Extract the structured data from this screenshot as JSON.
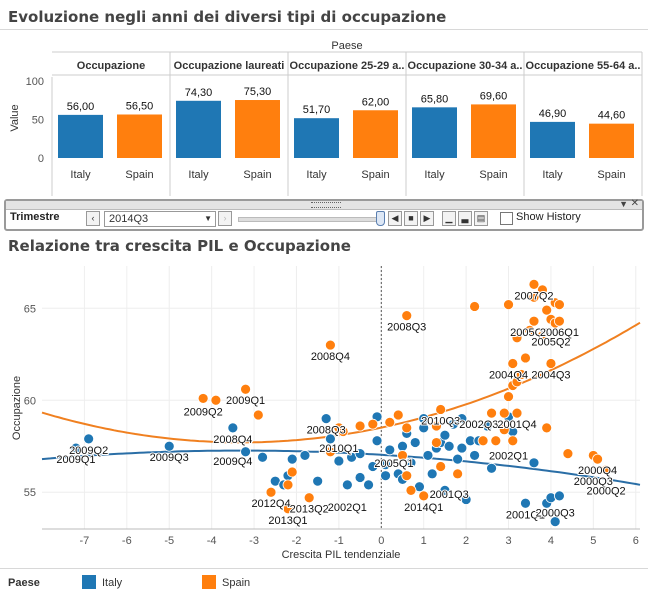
{
  "top_title": "Evoluzione negli anni dei diversi tipi di occupazione",
  "bottom_title": "Relazione tra crescita PIL e Occupazione",
  "colors": {
    "italy": "#1f77b4",
    "spain": "#ff7f0e",
    "trend_italy": "#2a6ea6",
    "trend_spain": "#f08020"
  },
  "toolbar": {
    "label": "Trimestre",
    "selected": "2014Q3",
    "show_history_label": "Show History",
    "show_history_checked": false
  },
  "legend": {
    "title": "Paese",
    "items": [
      {
        "label": "Italy",
        "color": "#1f77b4"
      },
      {
        "label": "Spain",
        "color": "#ff7f0e"
      }
    ]
  },
  "chart_data": [
    {
      "type": "bar",
      "header": "Paese",
      "ylabel": "Value",
      "ylim": [
        0,
        100
      ],
      "yticks": [
        0,
        50,
        100
      ],
      "panels": [
        {
          "title": "Occupazione",
          "categories": [
            "Italy",
            "Spain"
          ],
          "values": [
            56.0,
            56.5
          ],
          "labels": [
            "56,00",
            "56,50"
          ]
        },
        {
          "title": "Occupazione laureati",
          "categories": [
            "Italy",
            "Spain"
          ],
          "values": [
            74.3,
            75.3
          ],
          "labels": [
            "74,30",
            "75,30"
          ]
        },
        {
          "title": "Occupazione 25-29 a..",
          "categories": [
            "Italy",
            "Spain"
          ],
          "values": [
            51.7,
            62.0
          ],
          "labels": [
            "51,70",
            "62,00"
          ]
        },
        {
          "title": "Occupazione 30-34 a..",
          "categories": [
            "Italy",
            "Spain"
          ],
          "values": [
            65.8,
            69.6
          ],
          "labels": [
            "65,80",
            "69,60"
          ]
        },
        {
          "title": "Occupazione 55-64 a..",
          "categories": [
            "Italy",
            "Spain"
          ],
          "values": [
            46.9,
            44.6
          ],
          "labels": [
            "46,90",
            "44,60"
          ]
        }
      ]
    },
    {
      "type": "scatter",
      "xlabel": "Crescita PIL tendenziale",
      "ylabel": "Occupazione",
      "xlim": [
        -8,
        6.1
      ],
      "ylim": [
        53,
        67.3
      ],
      "xticks": [
        -7,
        -6,
        -5,
        -4,
        -3,
        -2,
        -1,
        0,
        1,
        2,
        3,
        4,
        5,
        6
      ],
      "yticks": [
        55,
        60,
        65
      ],
      "grid": true,
      "reference_line_x": 0,
      "series": [
        {
          "name": "Italy",
          "points": [
            [
              -7.2,
              57.4
            ],
            [
              -6.9,
              57.9
            ],
            [
              -5.0,
              57.5
            ],
            [
              -3.5,
              58.5
            ],
            [
              -3.2,
              57.2
            ],
            [
              -2.8,
              56.9
            ],
            [
              -2.5,
              55.6
            ],
            [
              -2.3,
              55.4
            ],
            [
              -2.2,
              55.9
            ],
            [
              -2.1,
              56.8
            ],
            [
              -1.8,
              57.0
            ],
            [
              -1.5,
              55.6
            ],
            [
              -1.3,
              59.0
            ],
            [
              -1.2,
              57.9
            ],
            [
              -1.0,
              56.7
            ],
            [
              -0.8,
              55.4
            ],
            [
              -0.7,
              56.9
            ],
            [
              -0.5,
              57.1
            ],
            [
              -0.5,
              55.8
            ],
            [
              -0.3,
              55.4
            ],
            [
              -0.2,
              56.4
            ],
            [
              -0.1,
              57.8
            ],
            [
              -0.1,
              59.1
            ],
            [
              0.1,
              56.5
            ],
            [
              0.1,
              55.9
            ],
            [
              0.2,
              57.3
            ],
            [
              0.4,
              56.0
            ],
            [
              0.5,
              55.7
            ],
            [
              0.5,
              57.5
            ],
            [
              0.6,
              58.2
            ],
            [
              0.7,
              56.6
            ],
            [
              0.8,
              57.7
            ],
            [
              0.9,
              55.3
            ],
            [
              1.0,
              58.5
            ],
            [
              1.0,
              59.0
            ],
            [
              1.1,
              57.0
            ],
            [
              1.2,
              56.0
            ],
            [
              1.3,
              57.4
            ],
            [
              1.4,
              57.7
            ],
            [
              1.5,
              58.1
            ],
            [
              1.5,
              55.1
            ],
            [
              1.6,
              57.5
            ],
            [
              1.7,
              58.7
            ],
            [
              1.8,
              56.8
            ],
            [
              1.9,
              57.4
            ],
            [
              1.9,
              59.0
            ],
            [
              2.0,
              54.6
            ],
            [
              2.1,
              57.8
            ],
            [
              2.2,
              57.0
            ],
            [
              2.3,
              57.8
            ],
            [
              2.5,
              58.6
            ],
            [
              2.6,
              56.3
            ],
            [
              3.0,
              59.1
            ],
            [
              3.1,
              58.3
            ],
            [
              3.4,
              54.4
            ],
            [
              3.6,
              56.6
            ],
            [
              3.9,
              54.4
            ],
            [
              4.0,
              54.7
            ],
            [
              4.1,
              53.4
            ],
            [
              4.2,
              54.8
            ]
          ],
          "point_labels": [
            {
              "label": "2009Q1",
              "x": -7.2,
              "y": 57.4
            },
            {
              "label": "2009Q2",
              "x": -6.9,
              "y": 57.9
            },
            {
              "label": "2009Q3",
              "x": -5.0,
              "y": 57.5
            },
            {
              "label": "2009Q4",
              "x": -3.5,
              "y": 57.3
            },
            {
              "label": "2008Q4",
              "x": -3.5,
              "y": 58.5
            },
            {
              "label": "2008Q3",
              "x": -1.3,
              "y": 59.0
            },
            {
              "label": "2010Q1",
              "x": -1.0,
              "y": 58.0
            },
            {
              "label": "2005Q1",
              "x": 0.3,
              "y": 57.2
            },
            {
              "label": "2010Q3",
              "x": 1.4,
              "y": 59.5
            },
            {
              "label": "2001Q3",
              "x": 1.6,
              "y": 55.5
            },
            {
              "label": "2001Q1",
              "x": 3.4,
              "y": 54.4
            },
            {
              "label": "2000Q3",
              "x": 4.1,
              "y": 54.5
            }
          ]
        },
        {
          "name": "Spain",
          "points": [
            [
              -4.2,
              60.1
            ],
            [
              -3.9,
              60.0
            ],
            [
              -3.2,
              60.6
            ],
            [
              -2.9,
              59.2
            ],
            [
              -2.6,
              55.0
            ],
            [
              -2.2,
              54.1
            ],
            [
              -2.2,
              55.4
            ],
            [
              -2.1,
              56.1
            ],
            [
              -1.7,
              54.7
            ],
            [
              -1.2,
              63.0
            ],
            [
              -1.2,
              57.2
            ],
            [
              -1.0,
              58.5
            ],
            [
              -0.9,
              58.3
            ],
            [
              -0.5,
              58.6
            ],
            [
              -0.2,
              58.7
            ],
            [
              0.2,
              58.8
            ],
            [
              0.4,
              59.2
            ],
            [
              0.5,
              57.0
            ],
            [
              0.6,
              55.9
            ],
            [
              0.7,
              55.1
            ],
            [
              0.6,
              58.5
            ],
            [
              0.6,
              64.6
            ],
            [
              1.0,
              54.8
            ],
            [
              1.3,
              58.6
            ],
            [
              1.4,
              59.5
            ],
            [
              1.3,
              57.7
            ],
            [
              1.4,
              56.4
            ],
            [
              1.8,
              56.0
            ],
            [
              2.2,
              65.1
            ],
            [
              2.4,
              57.8
            ],
            [
              2.6,
              59.3
            ],
            [
              2.7,
              57.8
            ],
            [
              2.9,
              58.4
            ],
            [
              2.9,
              59.3
            ],
            [
              3.0,
              65.2
            ],
            [
              3.0,
              60.2
            ],
            [
              3.1,
              57.8
            ],
            [
              3.1,
              60.8
            ],
            [
              3.1,
              62.0
            ],
            [
              3.2,
              59.3
            ],
            [
              3.2,
              61.0
            ],
            [
              3.3,
              61.4
            ],
            [
              3.2,
              63.4
            ],
            [
              3.4,
              62.3
            ],
            [
              3.5,
              63.8
            ],
            [
              3.6,
              64.3
            ],
            [
              3.6,
              65.6
            ],
            [
              3.6,
              66.3
            ],
            [
              3.8,
              66.0
            ],
            [
              3.8,
              63.5
            ],
            [
              3.9,
              58.5
            ],
            [
              3.9,
              64.9
            ],
            [
              4.0,
              64.4
            ],
            [
              4.1,
              64.2
            ],
            [
              4.1,
              65.3
            ],
            [
              4.2,
              64.3
            ],
            [
              4.2,
              65.2
            ],
            [
              4.0,
              62.0
            ],
            [
              4.4,
              57.1
            ],
            [
              5.0,
              57.0
            ],
            [
              5.3,
              56.2
            ],
            [
              5.1,
              56.8
            ]
          ],
          "point_labels": [
            {
              "label": "2009Q1",
              "x": -3.2,
              "y": 60.6
            },
            {
              "label": "2009Q2",
              "x": -4.2,
              "y": 60.0
            },
            {
              "label": "2008Q4",
              "x": -1.2,
              "y": 63.0
            },
            {
              "label": "2008Q3",
              "x": 0.6,
              "y": 64.6
            },
            {
              "label": "2012Q4",
              "x": -2.6,
              "y": 55.0
            },
            {
              "label": "2013Q1",
              "x": -2.2,
              "y": 54.1
            },
            {
              "label": "2013Q2",
              "x": -1.7,
              "y": 54.7
            },
            {
              "label": "2002Q1",
              "x": -0.8,
              "y": 54.8
            },
            {
              "label": "2014Q1",
              "x": 1.0,
              "y": 54.8
            },
            {
              "label": "2002Q3",
              "x": 2.3,
              "y": 59.3
            },
            {
              "label": "2004Q4",
              "x": 3.0,
              "y": 62.0
            },
            {
              "label": "2005Q3",
              "x": 3.5,
              "y": 64.3
            },
            {
              "label": "2007Q2",
              "x": 3.6,
              "y": 66.3
            },
            {
              "label": "2006Q1",
              "x": 4.2,
              "y": 64.3
            },
            {
              "label": "2005Q2",
              "x": 4.0,
              "y": 63.8
            },
            {
              "label": "2004Q3",
              "x": 4.0,
              "y": 62.0
            },
            {
              "label": "2001Q4",
              "x": 3.2,
              "y": 59.3
            },
            {
              "label": "2002Q1",
              "x": 3.0,
              "y": 57.6
            },
            {
              "label": "2000Q4",
              "x": 5.1,
              "y": 56.8
            },
            {
              "label": "2000Q3",
              "x": 5.0,
              "y": 56.2
            },
            {
              "label": "2000Q2",
              "x": 5.3,
              "y": 55.7
            }
          ]
        }
      ]
    }
  ]
}
